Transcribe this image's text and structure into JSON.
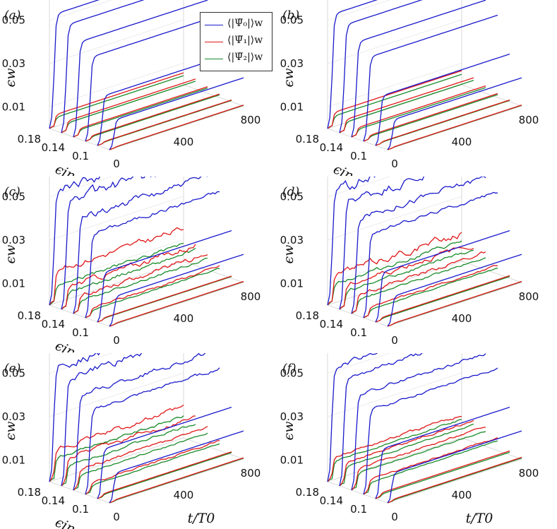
{
  "chart_data": {
    "type": "line",
    "title": "",
    "legend": [
      {
        "name": "⟨|Ψ̃₀|⟩w",
        "color": "#1a1acc"
      },
      {
        "name": "⟨|Ψ̃₁|⟩w",
        "color": "#e01818"
      },
      {
        "name": "⟨|Ψ̃₂|⟩w",
        "color": "#1a8c2a"
      }
    ],
    "legend_placement": "top-right of panel (a)",
    "axes": {
      "t_label": "t/T0",
      "t_ticks": [
        "0",
        "400",
        "800"
      ],
      "t_range": [
        0,
        800
      ],
      "ein_label": "ϵin",
      "ein_ticks": [
        "0.18",
        "0.14",
        "0.1"
      ],
      "ein_values": [
        0.18,
        0.16,
        0.14,
        0.12,
        0.1,
        0.08
      ],
      "ew_label": "ϵw",
      "ew_ticks": [
        "0.05",
        "0.03",
        "0.01"
      ],
      "ew_range": [
        0,
        0.06
      ]
    },
    "panels": [
      {
        "label": "(a)",
        "plateau0": [
          0.052,
          0.049,
          0.043,
          0.038,
          0.022,
          0.013
        ],
        "sat1": [
          0.0055,
          0.0046,
          0.003,
          0.0016,
          0.0008,
          0.0004
        ],
        "sat2": [
          0.0042,
          0.0036,
          0.0024,
          0.0012,
          0.0006,
          0.0003
        ],
        "turb": [
          0,
          0,
          0,
          0,
          0,
          0
        ],
        "rise": 22
      },
      {
        "label": "(b)",
        "plateau0": [
          0.052,
          0.049,
          0.043,
          0.038,
          0.022,
          0.013
        ],
        "sat1": [
          0.0065,
          0.0052,
          0.0034,
          0.0018,
          0.0008,
          0.0004
        ],
        "sat2": [
          0.0048,
          0.004,
          0.0026,
          0.0013,
          0.0006,
          0.0003
        ],
        "turb": [
          0,
          0,
          0,
          0,
          0,
          0
        ],
        "rise": 22
      },
      {
        "label": "(c)",
        "plateau0": [
          0.052,
          0.049,
          0.043,
          0.038,
          0.022,
          0.013
        ],
        "sat1": [
          0.015,
          0.0095,
          0.0072,
          0.0035,
          0.001,
          0.0005
        ],
        "sat2": [
          0.008,
          0.007,
          0.005,
          0.0025,
          0.0008,
          0.0004
        ],
        "turb": [
          0.0025,
          0.0025,
          0.0018,
          0.001,
          0,
          0
        ],
        "rise": 22
      },
      {
        "label": "(d)",
        "plateau0": [
          0.052,
          0.049,
          0.043,
          0.038,
          0.022,
          0.013
        ],
        "sat1": [
          0.013,
          0.01,
          0.008,
          0.004,
          0.0012,
          0.0005
        ],
        "sat2": [
          0.009,
          0.0075,
          0.0055,
          0.0028,
          0.0008,
          0.0004
        ],
        "turb": [
          0.003,
          0.0022,
          0.0015,
          0.0008,
          0,
          0
        ],
        "rise": 22
      },
      {
        "label": "(e)",
        "plateau0": [
          0.052,
          0.049,
          0.043,
          0.038,
          0.022,
          0.013
        ],
        "sat1": [
          0.014,
          0.012,
          0.0085,
          0.0045,
          0.0014,
          0.0006
        ],
        "sat2": [
          0.01,
          0.0085,
          0.006,
          0.0032,
          0.001,
          0.0004
        ],
        "turb": [
          0.002,
          0.0018,
          0.0012,
          0.0008,
          0,
          0
        ],
        "rise": 20
      },
      {
        "label": "(f)",
        "plateau0": [
          0.052,
          0.049,
          0.043,
          0.038,
          0.022,
          0.013
        ],
        "sat1": [
          0.0105,
          0.01,
          0.009,
          0.006,
          0.0018,
          0.0008
        ],
        "sat2": [
          0.0085,
          0.008,
          0.007,
          0.0045,
          0.0012,
          0.0005
        ],
        "turb": [
          0.0012,
          0.001,
          0.0008,
          0.0006,
          0,
          0
        ],
        "rise": 20
      }
    ]
  }
}
